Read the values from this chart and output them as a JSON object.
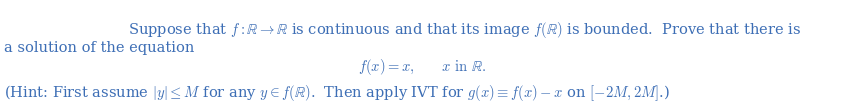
{
  "background_color": "#ffffff",
  "text_color": "#3d6eb5",
  "font_size_main": 10.5,
  "line1": "Suppose that $f : \\mathbb{R} \\to \\mathbb{R}$ is continuous and that its image $f(\\mathbb{R})$ is bounded.  Prove that there is",
  "line2": "a solution of the equation",
  "line3": "$f(x) = x, \\qquad x \\text{ in } \\mathbb{R}.$",
  "line4": "(Hint: First assume $|y| \\leq M$ for any $y \\in f(\\mathbb{R})$.  Then apply IVT for $g(x) \\equiv f(x) - x$ on $[-2M, 2M]$.)",
  "fig_width": 8.45,
  "fig_height": 1.03,
  "dpi": 100
}
